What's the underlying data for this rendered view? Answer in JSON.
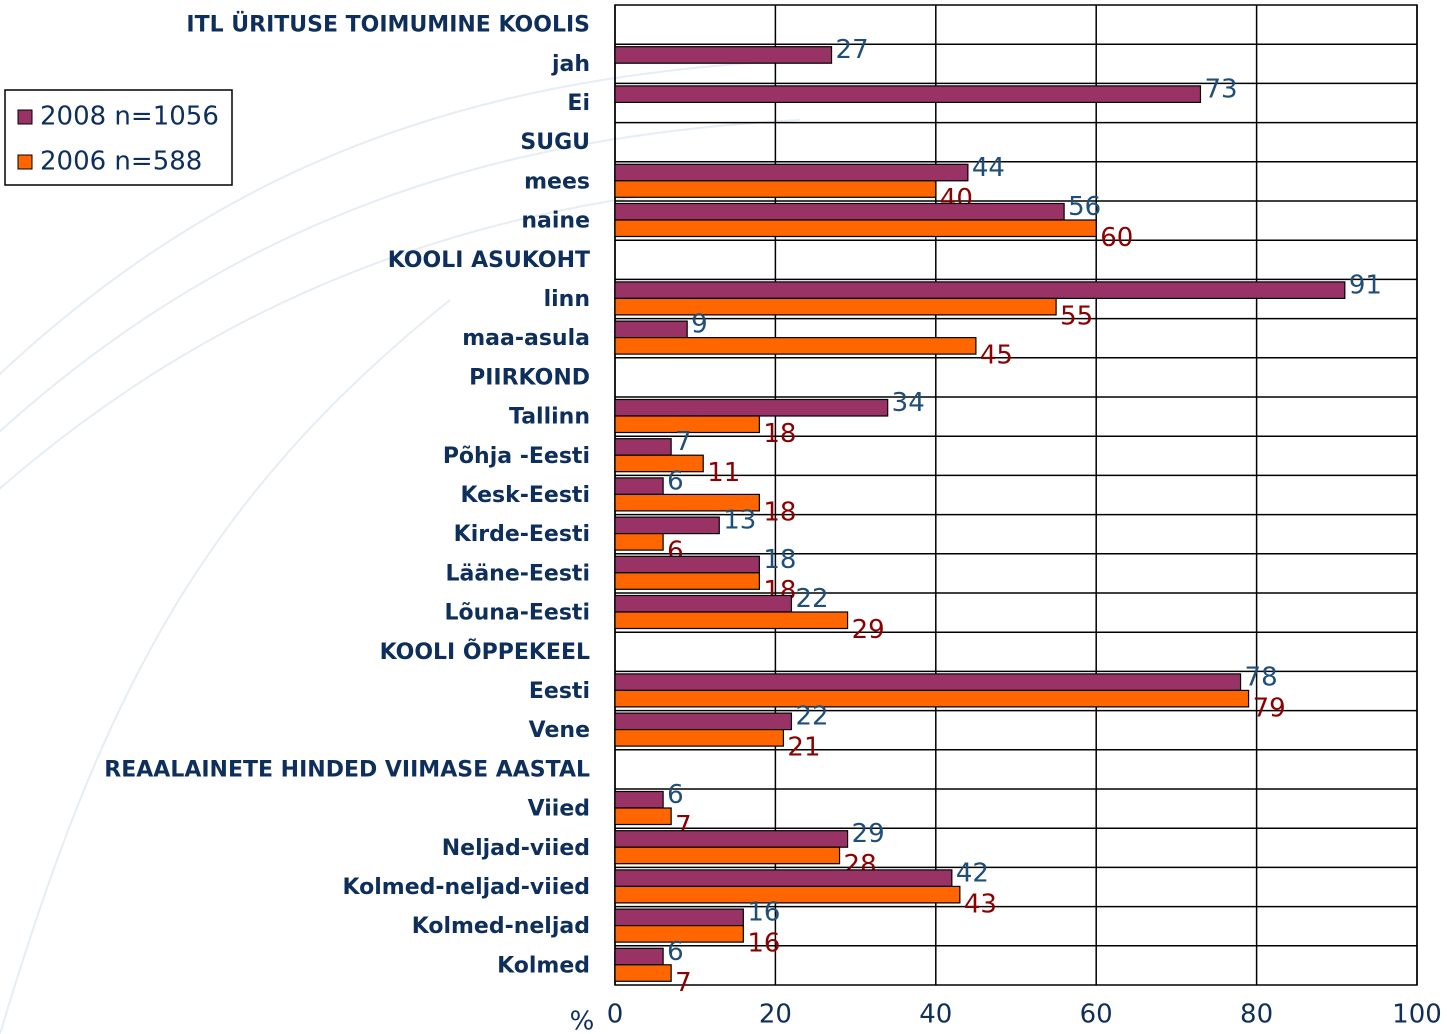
{
  "chart_data": {
    "type": "hbar",
    "xlabel": "%",
    "categories": [
      "ITL ÜRITUSE TOIMUMINE KOOLIS",
      "jah",
      "Ei",
      "SUGU",
      "mees",
      "naine",
      "KOOLI ASUKOHT",
      "linn",
      "maa-asula",
      "PIIRKOND",
      "Tallinn",
      "Põhja -Eesti",
      "Kesk-Eesti",
      "Kirde-Eesti",
      "Lääne-Eesti",
      "Lõuna-Eesti",
      "KOOLI ÕPPEKEEL",
      "Eesti",
      "Vene",
      "REAALAINETE HINDED VIIMASE AASTAL",
      "Viied",
      "Neljad-viied",
      "Kolmed-neljad-viied",
      "Kolmed-neljad",
      "Kolmed"
    ],
    "series": [
      {
        "name": "2008 n=1056",
        "color": "#993366",
        "label_color": "#1f4e79",
        "values": [
          null,
          27,
          73,
          null,
          44,
          56,
          null,
          91,
          9,
          null,
          34,
          7,
          6,
          13,
          18,
          22,
          null,
          78,
          22,
          null,
          6,
          29,
          42,
          16,
          6
        ]
      },
      {
        "name": "2006 n=588",
        "color": "#ff6600",
        "label_color": "#8b0000",
        "values": [
          null,
          null,
          null,
          null,
          40,
          60,
          null,
          55,
          45,
          null,
          18,
          11,
          18,
          6,
          18,
          29,
          null,
          79,
          21,
          null,
          7,
          28,
          43,
          16,
          7
        ]
      }
    ],
    "xlim": [
      0,
      100
    ],
    "xticks": [
      0,
      20,
      40,
      60,
      80,
      100
    ],
    "grid": true,
    "legend": "upper left"
  }
}
